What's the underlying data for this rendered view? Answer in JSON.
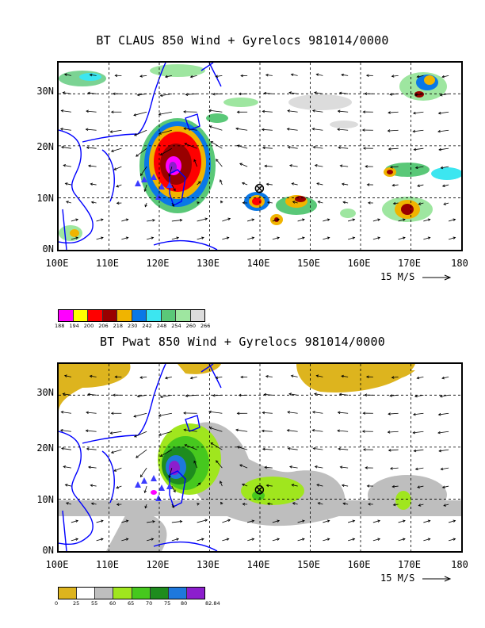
{
  "panels": [
    {
      "title": "BT CLAUS 850 Wind + Gyrelocs 981014/0000",
      "field": "CLAUS",
      "y_ticks": [
        "30N",
        "20N",
        "10N",
        "0N"
      ],
      "x_ticks": [
        "100E",
        "110E",
        "120E",
        "130E",
        "140E",
        "150E",
        "160E",
        "170E",
        "180"
      ],
      "ref_vector": "15 M/S",
      "colorbar": {
        "labels": [
          "188",
          "194",
          "200",
          "206",
          "218",
          "230",
          "242",
          "248",
          "254",
          "260",
          "266"
        ],
        "colors": [
          "#ff00ff",
          "#ffff00",
          "#ff0000",
          "#990000",
          "#f0b400",
          "#0a78e6",
          "#3ce6f0",
          "#5ac878",
          "#9ee6a0",
          "#dcdcdc"
        ]
      }
    },
    {
      "title": "BT Pwat 850 Wind + Gyrelocs 981014/0000",
      "field": "Pwat",
      "y_ticks": [
        "30N",
        "20N",
        "10N",
        "0N"
      ],
      "x_ticks": [
        "100E",
        "110E",
        "120E",
        "130E",
        "140E",
        "150E",
        "160E",
        "170E",
        "180"
      ],
      "ref_vector": "15 M/S",
      "colorbar": {
        "labels": [
          "0",
          "25",
          "55",
          "60",
          "65",
          "70",
          "75",
          "80",
          "82.84"
        ],
        "colors": [
          "#ddb41e",
          "#ffffff",
          "#bebebe",
          "#a0e61e",
          "#46c81e",
          "#1e8c1e",
          "#1e78dc",
          "#8c1ecd"
        ]
      }
    }
  ],
  "gyre_location": {
    "lon": 139.9,
    "lat": 11.8
  },
  "map_extent": {
    "lon": [
      100,
      180
    ],
    "lat": [
      0,
      36
    ]
  }
}
